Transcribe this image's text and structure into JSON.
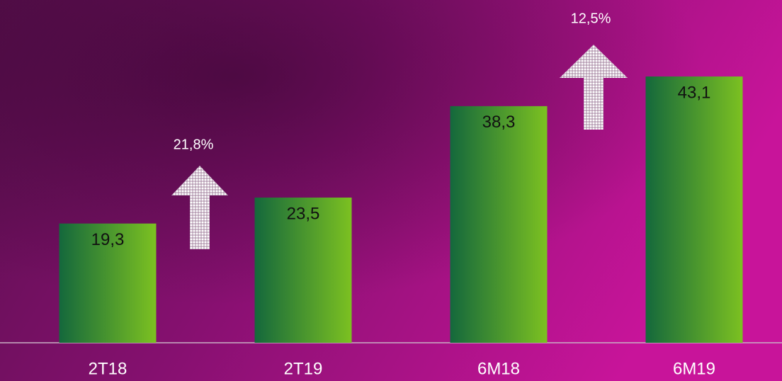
{
  "chart_data": {
    "type": "bar",
    "categories": [
      "2T18",
      "2T19",
      "6M18",
      "6M19"
    ],
    "values": [
      19.3,
      23.5,
      38.3,
      43.1
    ],
    "value_labels": [
      "19,3",
      "23,5",
      "38,3",
      "43,1"
    ],
    "colors": [
      "#14683c",
      "#7cc121"
    ],
    "annotations": [
      "21,8%",
      "12,5%"
    ]
  }
}
